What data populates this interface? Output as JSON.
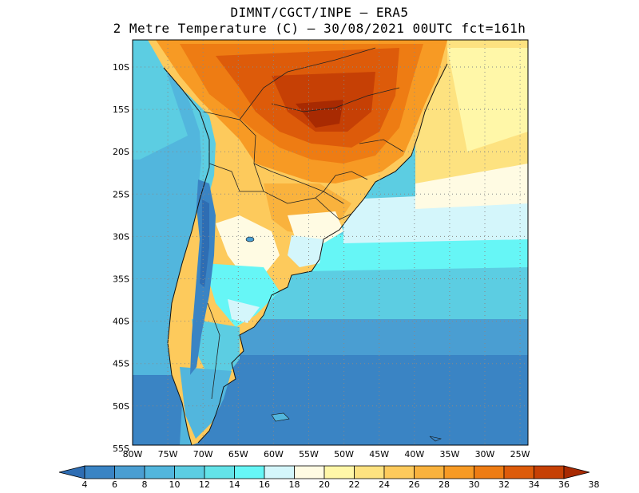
{
  "title": {
    "line1": "DIMNT/CGCT/INPE –  ERA5",
    "line2": "2 Metre Temperature (C) –  30/08/2021 00UTC fct=161h"
  },
  "map": {
    "lat_labels": [
      "10S",
      "15S",
      "20S",
      "25S",
      "30S",
      "35S",
      "40S",
      "45S",
      "50S",
      "55S"
    ],
    "lon_labels": [
      "80W",
      "75W",
      "70W",
      "65W",
      "60W",
      "55W",
      "50W",
      "45W",
      "40W",
      "35W",
      "30W",
      "25W"
    ]
  },
  "colorbar": {
    "labels": [
      "4",
      "6",
      "8",
      "10",
      "12",
      "14",
      "16",
      "18",
      "20",
      "22",
      "24",
      "26",
      "28",
      "30",
      "32",
      "34",
      "36",
      "38"
    ],
    "colors": [
      "#2e6db3",
      "#3a84c4",
      "#4a9ed2",
      "#52b6dd",
      "#5ccde2",
      "#63e3e8",
      "#66f6f6",
      "#d4f6fb",
      "#fffbe3",
      "#fff7a8",
      "#fde280",
      "#fdca5c",
      "#f9b23d",
      "#f79a24",
      "#ee7c13",
      "#dd5b0a",
      "#c64005",
      "#a82a02"
    ]
  }
}
